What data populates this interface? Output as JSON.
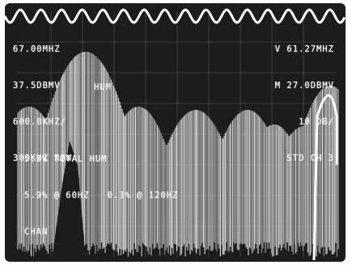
{
  "screen": {
    "left_readouts": {
      "center_frequency": "67.00MHZ",
      "reference_level": "37.5DBMV",
      "span": "600.0KHZ/",
      "rbw": "300KHZ RBW"
    },
    "right_readouts": {
      "marker_frequency": "V 61.27MHZ",
      "marker_level": "M 27.0DBMV",
      "scale": "10 DB/",
      "channel": "STD CH 3"
    },
    "measurement": {
      "mode": "HUM",
      "total_hum": "5.9% TOTAL HUM",
      "hum_breakdown": "5.9% @ 60HZ   0.3% @ 120HZ",
      "label": "CHAN"
    }
  },
  "colors": {
    "background": "#1c1c1c",
    "trace": "#e8e8e8",
    "graticule": "#5a5a5a",
    "text": "#f2f2f2"
  }
}
